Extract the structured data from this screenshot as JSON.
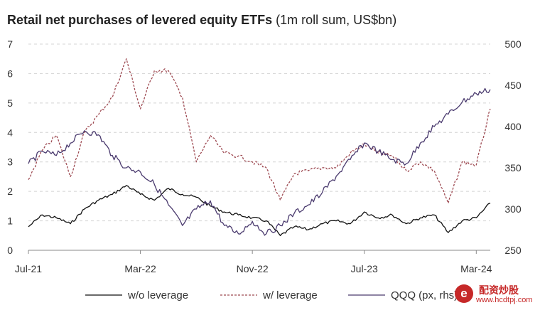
{
  "chart_data": {
    "type": "line",
    "title_bold": "Retail net purchases of levered equity ETFs",
    "title_normal": "(1m roll sum, US$bn)",
    "x_ticks": [
      "Jul-21",
      "Mar-22",
      "Nov-22",
      "Jul-23",
      "Mar-24"
    ],
    "y_left": {
      "range": [
        0,
        7
      ],
      "ticks": [
        "0",
        "1",
        "2",
        "3",
        "4",
        "5",
        "6",
        "7"
      ]
    },
    "y_right": {
      "range": [
        250,
        500
      ],
      "ticks": [
        "250",
        "300",
        "350",
        "400",
        "450",
        "500"
      ]
    },
    "grid": "horizontal dashed",
    "legend_position": "bottom",
    "series": [
      {
        "name": "w/o leverage",
        "axis": "left",
        "style": "solid",
        "color": "#111111",
        "points": [
          [
            "Jul-21",
            0.8
          ],
          [
            "Aug-21",
            1.2
          ],
          [
            "Sep-21",
            1.1
          ],
          [
            "Oct-21",
            0.9
          ],
          [
            "Nov-21",
            1.4
          ],
          [
            "Dec-21",
            1.7
          ],
          [
            "Jan-22",
            1.9
          ],
          [
            "Feb-22",
            2.2
          ],
          [
            "Mar-22",
            1.9
          ],
          [
            "Apr-22",
            1.7
          ],
          [
            "May-22",
            2.1
          ],
          [
            "Jun-22",
            1.9
          ],
          [
            "Jul-22",
            1.8
          ],
          [
            "Aug-22",
            1.5
          ],
          [
            "Sep-22",
            1.3
          ],
          [
            "Oct-22",
            1.2
          ],
          [
            "Nov-22",
            1.1
          ],
          [
            "Dec-22",
            1.0
          ],
          [
            "Jan-23",
            0.5
          ],
          [
            "Feb-23",
            0.8
          ],
          [
            "Mar-23",
            0.7
          ],
          [
            "Apr-23",
            0.9
          ],
          [
            "May-23",
            1.0
          ],
          [
            "Jun-23",
            0.9
          ],
          [
            "Jul-23",
            1.3
          ],
          [
            "Aug-23",
            1.1
          ],
          [
            "Sep-23",
            1.2
          ],
          [
            "Oct-23",
            0.9
          ],
          [
            "Nov-23",
            1.1
          ],
          [
            "Dec-23",
            1.2
          ],
          [
            "Jan-24",
            0.6
          ],
          [
            "Feb-24",
            1.0
          ],
          [
            "Mar-24",
            1.1
          ],
          [
            "Apr-24",
            1.6
          ]
        ]
      },
      {
        "name": "w/ leverage",
        "axis": "left",
        "style": "dashed",
        "color": "#9e4a52",
        "points": [
          [
            "Jul-21",
            2.4
          ],
          [
            "Aug-21",
            3.4
          ],
          [
            "Sep-21",
            3.9
          ],
          [
            "Oct-21",
            2.5
          ],
          [
            "Nov-21",
            4.0
          ],
          [
            "Dec-21",
            4.6
          ],
          [
            "Jan-22",
            5.2
          ],
          [
            "Feb-22",
            6.5
          ],
          [
            "Mar-22",
            4.8
          ],
          [
            "Apr-22",
            6.1
          ],
          [
            "May-22",
            6.1
          ],
          [
            "Jun-22",
            5.2
          ],
          [
            "Jul-22",
            3.0
          ],
          [
            "Aug-22",
            3.9
          ],
          [
            "Sep-22",
            3.3
          ],
          [
            "Oct-22",
            3.2
          ],
          [
            "Nov-22",
            3.0
          ],
          [
            "Dec-22",
            2.8
          ],
          [
            "Jan-23",
            1.7
          ],
          [
            "Feb-23",
            2.6
          ],
          [
            "Mar-23",
            2.7
          ],
          [
            "Apr-23",
            2.8
          ],
          [
            "May-23",
            2.8
          ],
          [
            "Jun-23",
            3.3
          ],
          [
            "Jul-23",
            3.6
          ],
          [
            "Aug-23",
            3.3
          ],
          [
            "Sep-23",
            3.2
          ],
          [
            "Oct-23",
            2.7
          ],
          [
            "Nov-23",
            3.0
          ],
          [
            "Dec-23",
            2.7
          ],
          [
            "Jan-24",
            1.6
          ],
          [
            "Feb-24",
            3.0
          ],
          [
            "Mar-24",
            2.9
          ],
          [
            "Apr-24",
            4.8
          ]
        ]
      },
      {
        "name": "QQQ (px, rhs)",
        "axis": "right",
        "style": "solid",
        "color": "#4a3a6e",
        "points": [
          [
            "Jul-21",
            355
          ],
          [
            "Aug-21",
            370
          ],
          [
            "Sep-21",
            365
          ],
          [
            "Oct-21",
            380
          ],
          [
            "Nov-21",
            395
          ],
          [
            "Dec-21",
            390
          ],
          [
            "Jan-22",
            365
          ],
          [
            "Feb-22",
            350
          ],
          [
            "Mar-22",
            345
          ],
          [
            "Apr-22",
            330
          ],
          [
            "May-22",
            305
          ],
          [
            "Jun-22",
            280
          ],
          [
            "Jul-22",
            300
          ],
          [
            "Aug-22",
            310
          ],
          [
            "Sep-22",
            280
          ],
          [
            "Oct-22",
            270
          ],
          [
            "Nov-22",
            285
          ],
          [
            "Dec-22",
            270
          ],
          [
            "Jan-23",
            280
          ],
          [
            "Feb-23",
            295
          ],
          [
            "Mar-23",
            305
          ],
          [
            "Apr-23",
            320
          ],
          [
            "May-23",
            340
          ],
          [
            "Jun-23",
            360
          ],
          [
            "Jul-23",
            380
          ],
          [
            "Aug-23",
            370
          ],
          [
            "Sep-23",
            360
          ],
          [
            "Oct-23",
            355
          ],
          [
            "Nov-23",
            380
          ],
          [
            "Dec-23",
            400
          ],
          [
            "Jan-24",
            415
          ],
          [
            "Feb-24",
            430
          ],
          [
            "Mar-24",
            440
          ],
          [
            "Apr-24",
            445
          ]
        ]
      }
    ]
  },
  "watermark": {
    "logo_char": "e",
    "title": "配资炒股",
    "url": "www.hcdtpj.com"
  }
}
